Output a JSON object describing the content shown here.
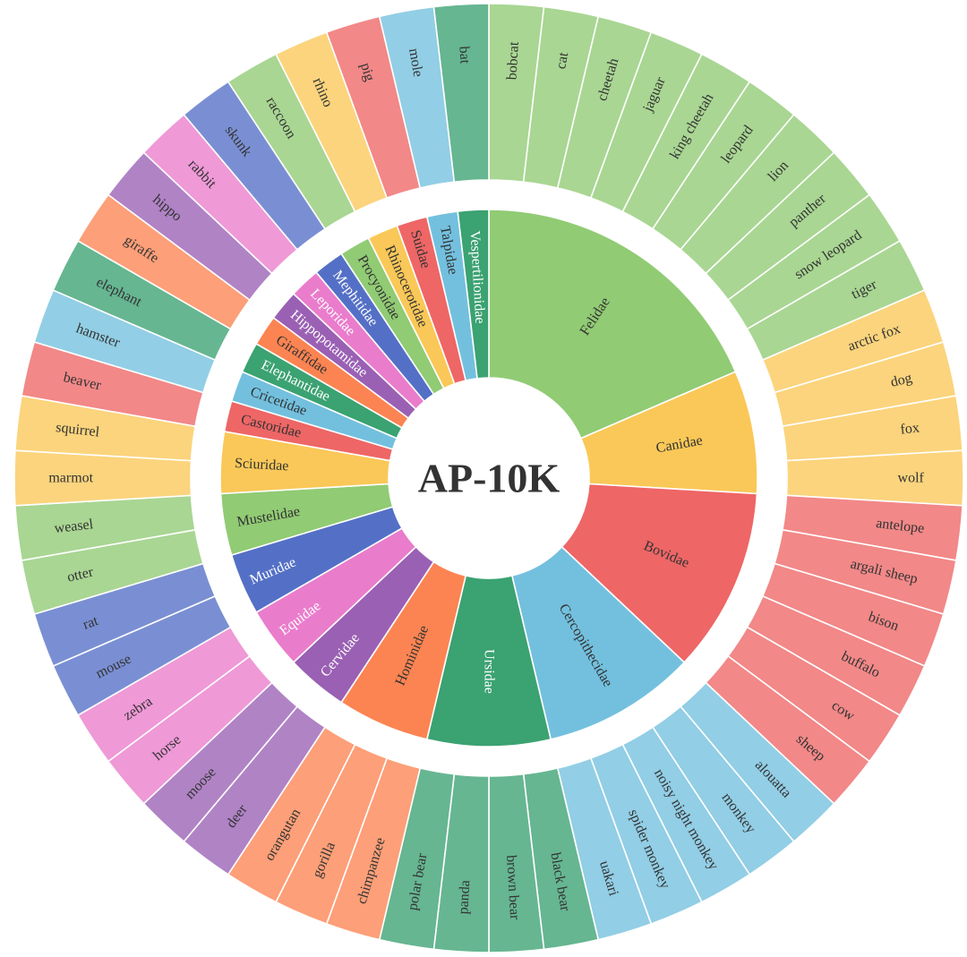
{
  "chart_data": {
    "type": "sunburst",
    "title": "AP-10K",
    "families": [
      {
        "name": "Felidae",
        "color": "#91cb74",
        "species": [
          "bobcat",
          "cat",
          "cheetah",
          "jaguar",
          "king cheetah",
          "leopard",
          "lion",
          "panther",
          "snow leopard",
          "tiger"
        ]
      },
      {
        "name": "Canidae",
        "color": "#fac858",
        "species": [
          "arctic fox",
          "dog",
          "fox",
          "wolf"
        ]
      },
      {
        "name": "Bovidae",
        "color": "#ee6666",
        "species": [
          "antelope",
          "argali sheep",
          "bison",
          "buffalo",
          "cow",
          "sheep"
        ]
      },
      {
        "name": "Cercopithecidae",
        "color": "#73c0de",
        "species": [
          "alouatta",
          "monkey",
          "noisy night monkey",
          "spider monkey",
          "uakari"
        ]
      },
      {
        "name": "Ursidae",
        "color": "#3ba272",
        "species": [
          "black bear",
          "brown bear",
          "panda",
          "polar bear"
        ]
      },
      {
        "name": "Hominidae",
        "color": "#fc8452",
        "species": [
          "chimpanzee",
          "gorilla",
          "orangutan"
        ]
      },
      {
        "name": "Cervidae",
        "color": "#9a60b4",
        "species": [
          "deer",
          "moose"
        ]
      },
      {
        "name": "Equidae",
        "color": "#ea7ccc",
        "species": [
          "horse",
          "zebra"
        ]
      },
      {
        "name": "Muridae",
        "color": "#5470c6",
        "species": [
          "mouse",
          "rat"
        ]
      },
      {
        "name": "Mustelidae",
        "color": "#91cb74",
        "species": [
          "otter",
          "weasel"
        ]
      },
      {
        "name": "Sciuridae",
        "color": "#fac858",
        "species": [
          "marmot",
          "squirrel"
        ]
      },
      {
        "name": "Castoridae",
        "color": "#ee6666",
        "species": [
          "beaver"
        ]
      },
      {
        "name": "Cricetidae",
        "color": "#73c0de",
        "species": [
          "hamster"
        ]
      },
      {
        "name": "Elephantidae",
        "color": "#3ba272",
        "species": [
          "elephant"
        ]
      },
      {
        "name": "Giraffidae",
        "color": "#fc8452",
        "species": [
          "giraffe"
        ]
      },
      {
        "name": "Hippopotamidae",
        "color": "#9a60b4",
        "species": [
          "hippo"
        ]
      },
      {
        "name": "Leporidae",
        "color": "#ea7ccc",
        "species": [
          "rabbit"
        ]
      },
      {
        "name": "Mephitidae",
        "color": "#5470c6",
        "species": [
          "skunk"
        ]
      },
      {
        "name": "Procyonidae",
        "color": "#91cb74",
        "species": [
          "raccoon"
        ]
      },
      {
        "name": "Rhinocerotidae",
        "color": "#fac858",
        "species": [
          "rhino"
        ]
      },
      {
        "name": "Suidae",
        "color": "#ee6666",
        "species": [
          "pig"
        ]
      },
      {
        "name": "Talpidae",
        "color": "#73c0de",
        "species": [
          "mole"
        ]
      },
      {
        "name": "Vespertilionidae",
        "color": "#3ba272",
        "species": [
          "bat"
        ]
      }
    ]
  }
}
